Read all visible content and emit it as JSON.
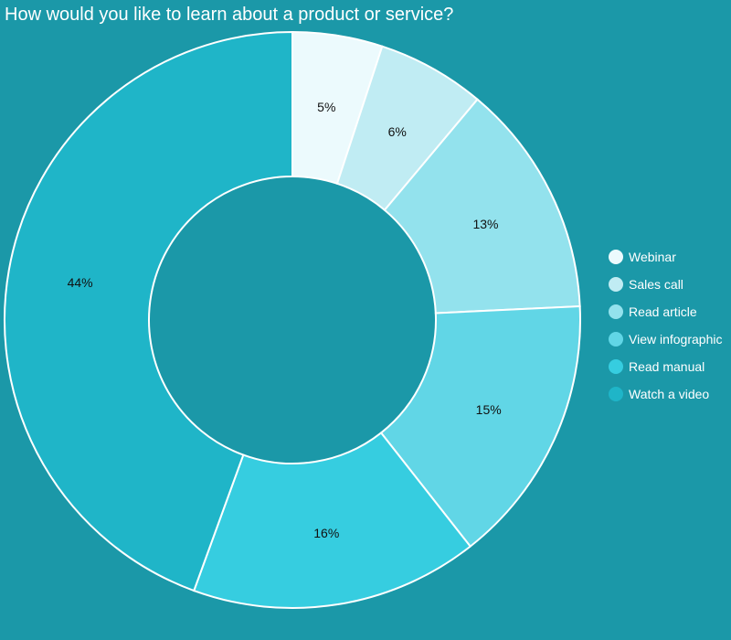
{
  "chart_data": {
    "type": "pie",
    "variant": "donut",
    "title": "How would you like to learn about a product or service?",
    "categories": [
      "Webinar",
      "Sales call",
      "Read article",
      "View infographic",
      "Read manual",
      "Watch a video"
    ],
    "values": [
      5,
      6,
      13,
      15,
      16,
      44
    ],
    "data_labels": [
      "5%",
      "6%",
      "13%",
      "15%",
      "16%",
      "44%"
    ],
    "colors": [
      "#ecfafd",
      "#c0ecf3",
      "#93e2ed",
      "#61d6e6",
      "#36cde0",
      "#1fb5c8"
    ],
    "slice_border_color": "#ffffff",
    "background_color": "#1b98a8",
    "legend": {
      "position": "right"
    },
    "start_angle": "top, clockwise"
  }
}
